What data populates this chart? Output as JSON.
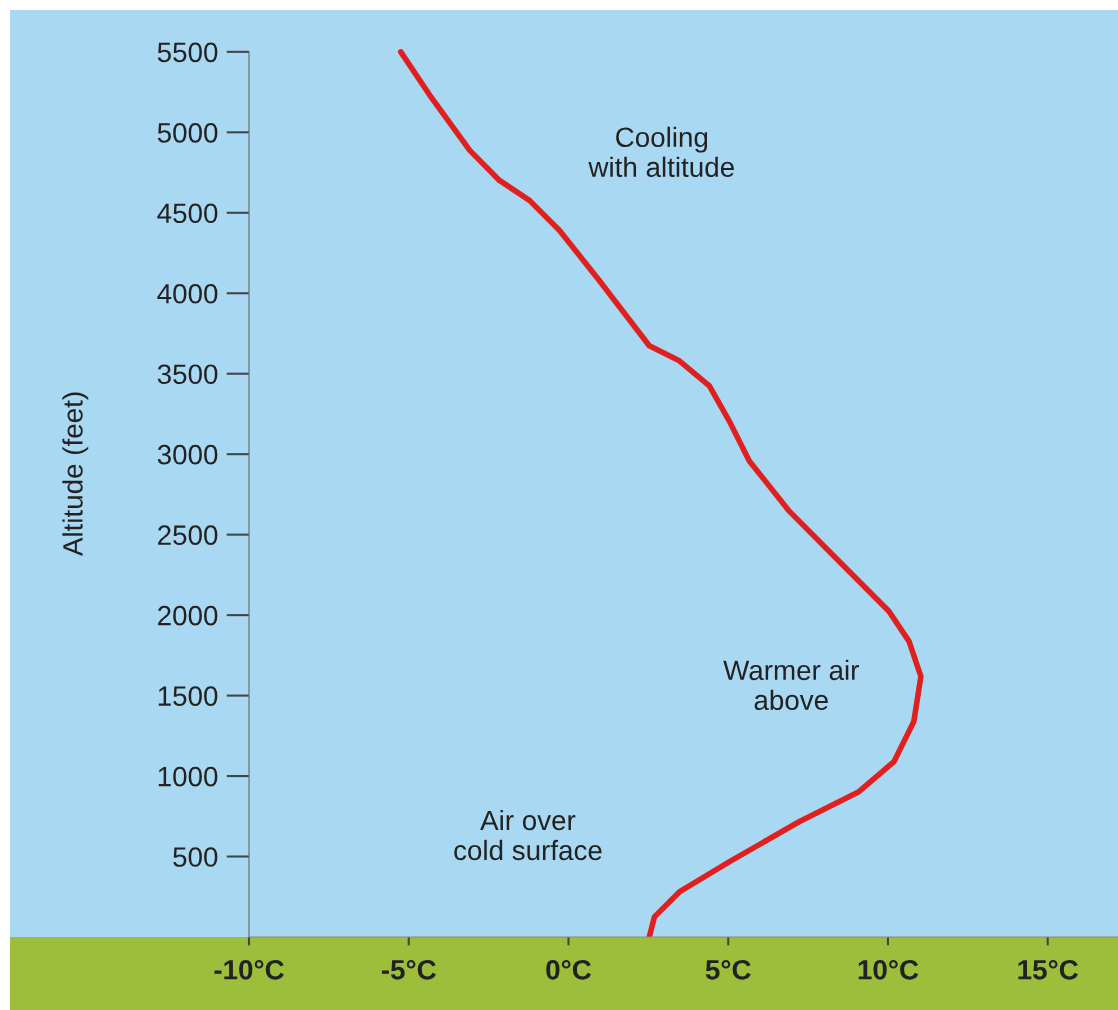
{
  "chart_data": {
    "type": "line",
    "ylabel": "Altitude (feet)",
    "xlim": [
      -10,
      17.2
    ],
    "ylim": [
      0,
      5760
    ],
    "xticks": [
      {
        "value": -10,
        "label": "-10°C"
      },
      {
        "value": -5,
        "label": "-5°C"
      },
      {
        "value": 0,
        "label": "0°C"
      },
      {
        "value": 5,
        "label": "5°C"
      },
      {
        "value": 10,
        "label": "10°C"
      },
      {
        "value": 15,
        "label": "15°C"
      }
    ],
    "yticks": [
      500,
      1000,
      1500,
      2000,
      2500,
      3000,
      3500,
      4000,
      4500,
      5000,
      5500
    ],
    "grid": false,
    "marker": "none",
    "line_style": "solid",
    "series": [
      {
        "color": "#e0201e",
        "x": [
          -5.25,
          -4.34,
          -3.09,
          -2.16,
          -1.22,
          -0.28,
          0.97,
          2.53,
          3.47,
          4.41,
          5.03,
          5.66,
          6.91,
          8.47,
          10.03,
          10.66,
          11.03,
          10.81,
          10.19,
          9.09,
          7.22,
          5.03,
          3.47,
          2.69,
          2.53
        ],
        "values": [
          5500,
          5230,
          4888,
          4701,
          4577,
          4390,
          4078,
          3674,
          3580,
          3425,
          3207,
          2958,
          2646,
          2335,
          2024,
          1837,
          1619,
          1339,
          1090,
          903,
          716,
          467,
          280,
          125,
          0
        ]
      }
    ],
    "annotations": [
      "Cooling\nwith altitude",
      "Warmer air\nabove",
      "Air over\ncold surface"
    ]
  }
}
